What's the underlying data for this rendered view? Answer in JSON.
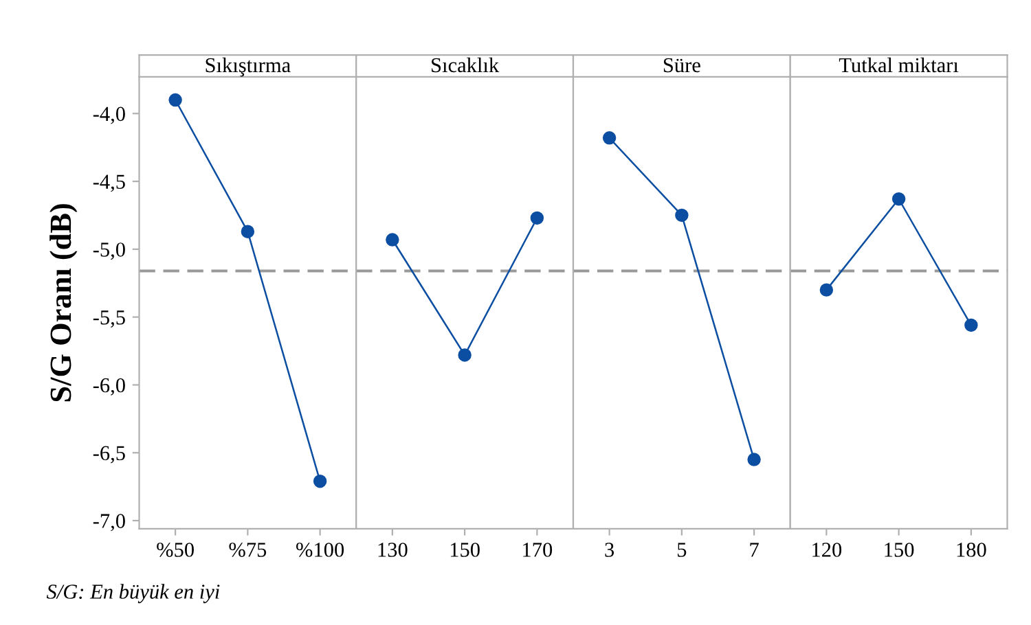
{
  "chart_data": [
    {
      "type": "line",
      "title": "Sıkıştırma",
      "ylabel": "S/G Oranı (dB)",
      "categories": [
        "%50",
        "%75",
        "%100"
      ],
      "series": [
        {
          "color": "#0b4ea2",
          "values": [
            -3.9,
            -4.87,
            -6.71
          ]
        }
      ],
      "ylim": [
        -7.06,
        -3.73
      ],
      "yticks": [
        {
          "value": -7.0,
          "label": "-7,0"
        },
        {
          "value": -6.5,
          "label": "-6,5"
        },
        {
          "value": -6.0,
          "label": "-6,0"
        },
        {
          "value": -5.5,
          "label": "-5,5"
        },
        {
          "value": -5.0,
          "label": "-5,0"
        },
        {
          "value": -4.5,
          "label": "-4,5"
        },
        {
          "value": -4.0,
          "label": "-4,0"
        }
      ],
      "ref_lines": [
        {
          "axis": "y",
          "value": -5.16,
          "color": "#999999",
          "line_style": "dashed"
        }
      ],
      "marker": "circle",
      "line_style": "solid",
      "grid": false,
      "legend": false,
      "annotations": [
        "S/G: En büyük en iyi"
      ]
    },
    {
      "type": "line",
      "title": "Sıcaklık",
      "categories": [
        "130",
        "150",
        "170"
      ],
      "series": [
        {
          "color": "#0b4ea2",
          "values": [
            -4.93,
            -5.78,
            -4.77
          ]
        }
      ],
      "ylim": [
        -7.06,
        -3.73
      ],
      "tick_labels": "x",
      "ref_lines": [
        {
          "axis": "y",
          "value": -5.16,
          "color": "#999999",
          "line_style": "dashed"
        }
      ],
      "marker": "circle",
      "line_style": "solid",
      "grid": false,
      "legend": false
    },
    {
      "type": "line",
      "title": "Süre",
      "categories": [
        "3",
        "5",
        "7"
      ],
      "series": [
        {
          "color": "#0b4ea2",
          "values": [
            -4.18,
            -4.75,
            -6.55
          ]
        }
      ],
      "ylim": [
        -7.06,
        -3.73
      ],
      "tick_labels": "x",
      "ref_lines": [
        {
          "axis": "y",
          "value": -5.16,
          "color": "#999999",
          "line_style": "dashed"
        }
      ],
      "marker": "circle",
      "line_style": "solid",
      "grid": false,
      "legend": false
    },
    {
      "type": "line",
      "title": "Tutkal miktarı",
      "categories": [
        "120",
        "150",
        "180"
      ],
      "series": [
        {
          "color": "#0b4ea2",
          "values": [
            -5.3,
            -4.63,
            -5.56
          ]
        }
      ],
      "ylim": [
        -7.06,
        -3.73
      ],
      "tick_labels": "x",
      "ref_lines": [
        {
          "axis": "y",
          "value": -5.16,
          "color": "#999999",
          "line_style": "dashed"
        }
      ],
      "marker": "circle",
      "line_style": "solid",
      "grid": false,
      "legend": false
    }
  ]
}
